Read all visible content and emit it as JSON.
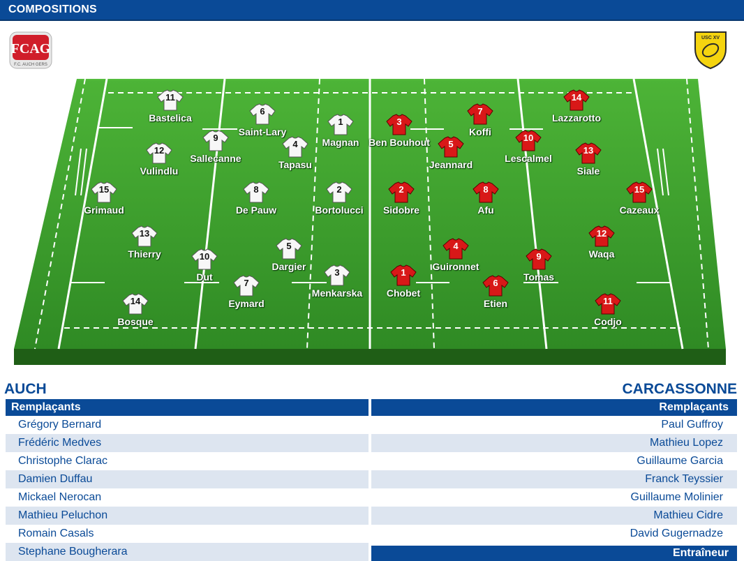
{
  "header": {
    "title": "COMPOSITIONS"
  },
  "logos": {
    "home": {
      "text": "FCAG",
      "subtext": "F.C. AUCH GERS"
    },
    "away": {
      "text": "USC XV"
    }
  },
  "colors": {
    "brand": "#0a4a97",
    "pitch_green": "#3b9a2b",
    "home_jersey": "#ffffff",
    "away_jersey": "#d81818"
  },
  "home": {
    "name": "AUCH",
    "players": [
      {
        "n": "11",
        "name": "Bastelica"
      },
      {
        "n": "6",
        "name": "Saint-Lary"
      },
      {
        "n": "1",
        "name": "Magnan"
      },
      {
        "n": "9",
        "name": "Sallecanne"
      },
      {
        "n": "4",
        "name": "Tapasu"
      },
      {
        "n": "12",
        "name": "Vulindlu"
      },
      {
        "n": "15",
        "name": "Grimaud"
      },
      {
        "n": "8",
        "name": "De Pauw"
      },
      {
        "n": "2",
        "name": "Bortolucci"
      },
      {
        "n": "13",
        "name": "Thierry"
      },
      {
        "n": "10",
        "name": "Dut"
      },
      {
        "n": "5",
        "name": "Dargier"
      },
      {
        "n": "3",
        "name": "Menkarska"
      },
      {
        "n": "7",
        "name": "Eymard"
      },
      {
        "n": "14",
        "name": "Bosque"
      }
    ],
    "subs_title": "Remplaçants",
    "subs": [
      "Grégory Bernard",
      "Frédéric Medves",
      "Christophe Clarac",
      "Damien Duffau",
      "Mickael Nerocan",
      "Mathieu Peluchon",
      "Romain Casals",
      "Stephane Bougherara"
    ]
  },
  "away": {
    "name": "CARCASSONNE",
    "players": [
      {
        "n": "14",
        "name": "Lazzarotto"
      },
      {
        "n": "7",
        "name": "Koffi"
      },
      {
        "n": "3",
        "name": "Ben Bouhout"
      },
      {
        "n": "5",
        "name": "Jeannard"
      },
      {
        "n": "10",
        "name": "Lescalmel"
      },
      {
        "n": "13",
        "name": "Siale"
      },
      {
        "n": "2",
        "name": "Sidobre"
      },
      {
        "n": "8",
        "name": "Afu"
      },
      {
        "n": "15",
        "name": "Cazeaux"
      },
      {
        "n": "12",
        "name": "Waqa"
      },
      {
        "n": "4",
        "name": "Guironnet"
      },
      {
        "n": "9",
        "name": "Tomas"
      },
      {
        "n": "1",
        "name": "Chobet"
      },
      {
        "n": "6",
        "name": "Etien"
      },
      {
        "n": "11",
        "name": "Codjo"
      }
    ],
    "subs_title": "Remplaçants",
    "subs": [
      "Paul Guffroy",
      "Mathieu Lopez",
      "Guillaume Garcia",
      "Franck Teyssier",
      "Guillaume Molinier",
      "Mathieu Cidre",
      "David Gugernadze"
    ],
    "coach_title": "Entraîneur"
  }
}
